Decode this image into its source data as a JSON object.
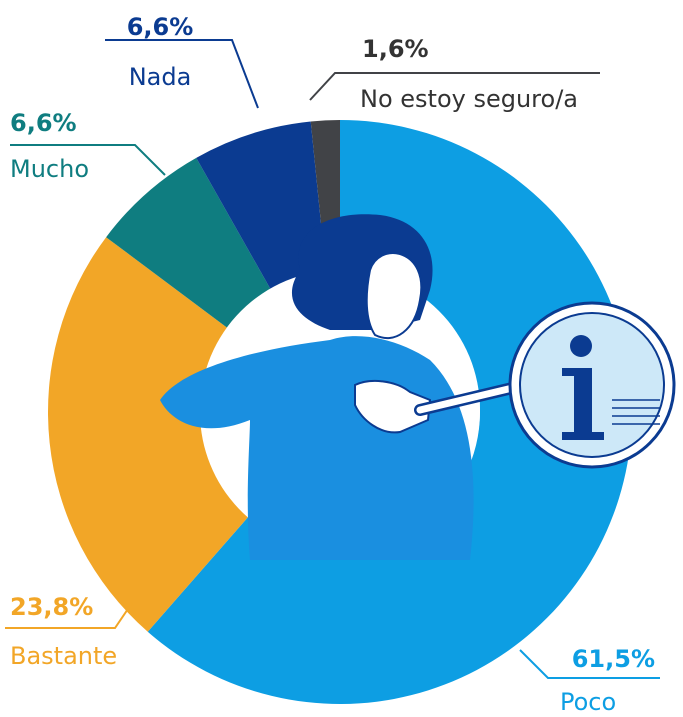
{
  "chart_data": {
    "type": "donut",
    "categories": [
      "Poco",
      "Bastante",
      "Mucho",
      "Nada",
      "No estoy seguro/a"
    ],
    "values": [
      61.5,
      23.8,
      6.6,
      6.6,
      1.6
    ],
    "value_labels": [
      "61,5%",
      "23,8%",
      "6,6%",
      "6,6%",
      "1,6%"
    ],
    "colors": [
      "#0d9ee3",
      "#f2a627",
      "#0f7d80",
      "#0b3b91",
      "#414347"
    ]
  }
}
